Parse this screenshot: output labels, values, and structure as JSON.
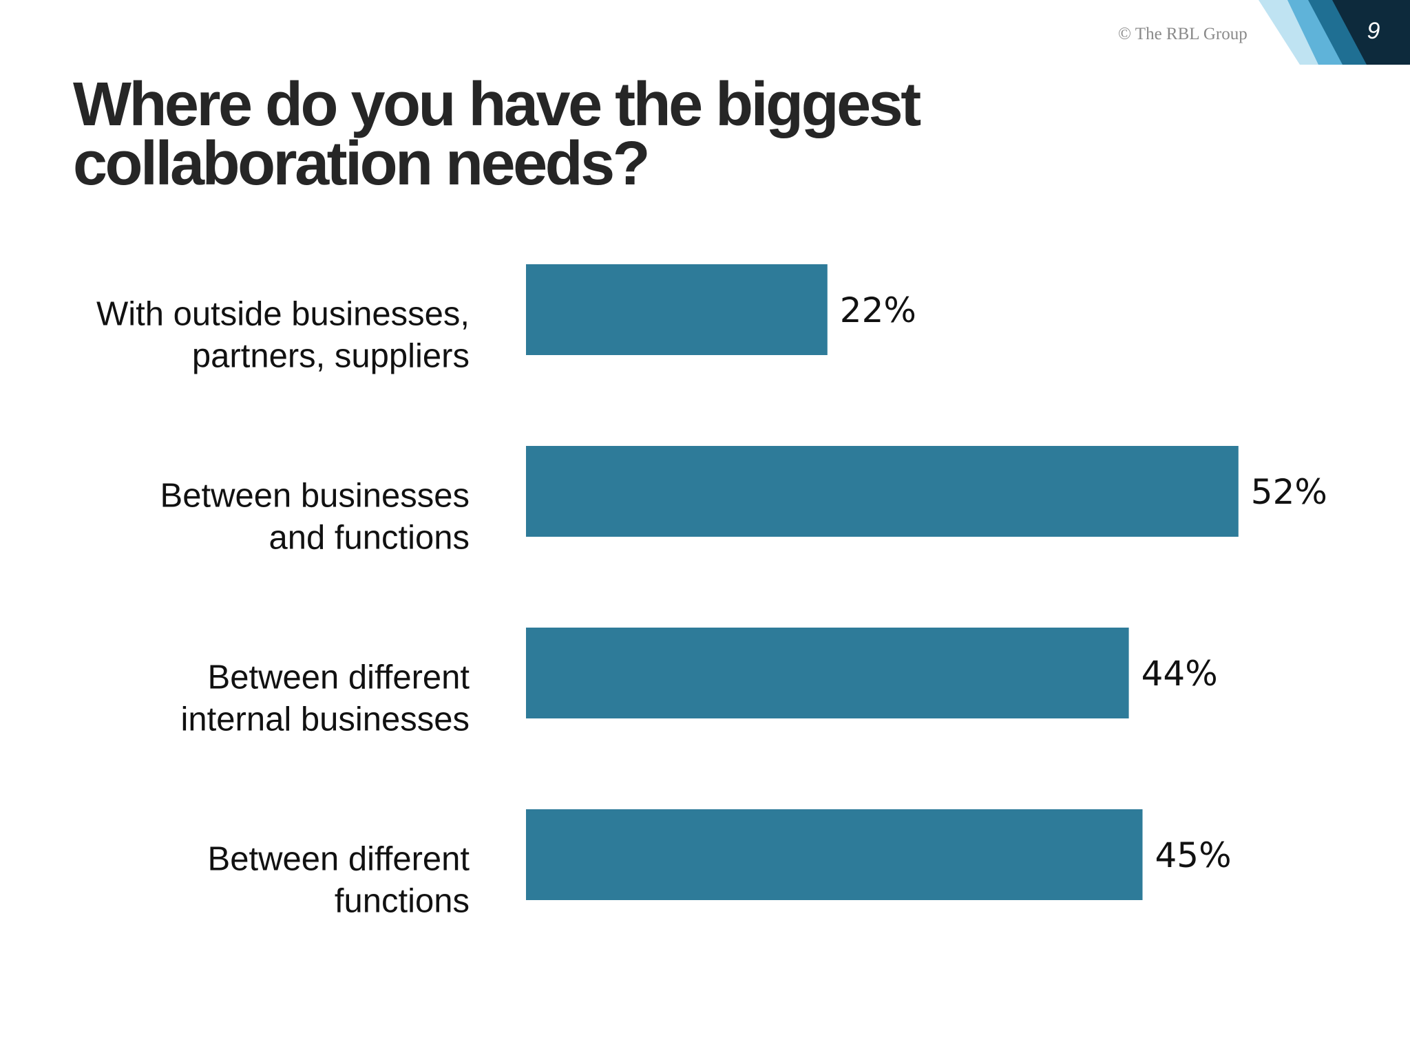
{
  "slide": {
    "logo": "© The RBL Group",
    "page_number": "9"
  },
  "chart_data": {
    "type": "hbar",
    "title": [
      "Where do you have the biggest",
      "collaboration needs?"
    ],
    "categories": [
      [
        "With outside businesses,",
        "partners, suppliers"
      ],
      [
        "Between businesses",
        "and functions"
      ],
      [
        "Between different",
        "internal businesses"
      ],
      [
        "Between different",
        "functions"
      ]
    ],
    "values": [
      22,
      52,
      44,
      45
    ],
    "value_labels": [
      "22%",
      "52%",
      "44%",
      "45%"
    ],
    "color": "#2e7b99"
  }
}
